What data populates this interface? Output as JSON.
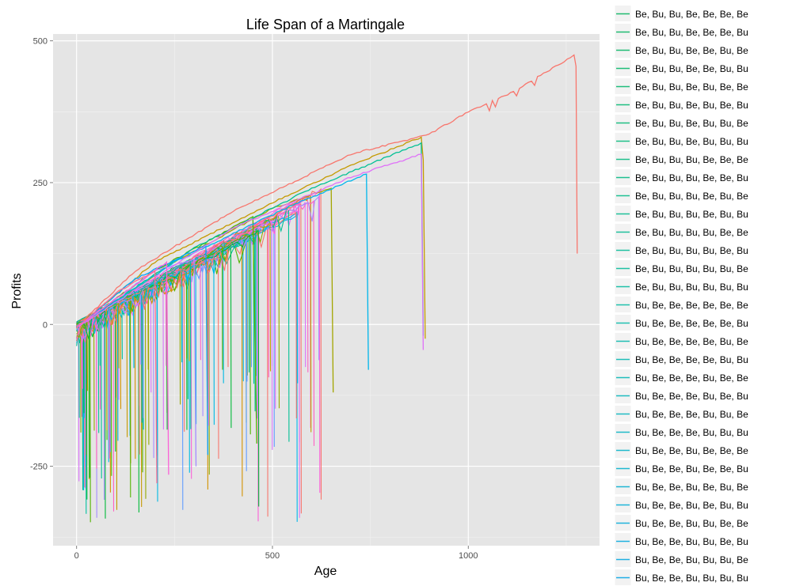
{
  "chart_data": {
    "type": "line",
    "title": "Life Span of a Martingale",
    "xlabel": "Age",
    "ylabel": "Profits",
    "xlim": [
      -60,
      1335
    ],
    "ylim": [
      -390,
      512
    ],
    "x_ticks": [
      0,
      500,
      1000
    ],
    "y_ticks": [
      500,
      250,
      0,
      -250
    ],
    "x_tick_labels": [
      "0",
      "500",
      "1000"
    ],
    "y_tick_labels": [
      "500",
      "250",
      "0",
      "-250"
    ],
    "grid": true,
    "panel_background": "#e5e5e5",
    "legend_position": "right",
    "legend_entries": [
      {
        "name": "Be, Bu, Bu, Be, Be, Be, Be",
        "color": "#1fbb6f"
      },
      {
        "name": "Be, Bu, Bu, Be, Be, Be, Bu",
        "color": "#1fbb70"
      },
      {
        "name": "Be, Bu, Bu, Be, Be, Bu, Be",
        "color": "#1fbc74"
      },
      {
        "name": "Be, Bu, Bu, Be, Be, Bu, Bu",
        "color": "#1fbd78"
      },
      {
        "name": "Be, Bu, Bu, Be, Bu, Be, Be",
        "color": "#1fbd7c"
      },
      {
        "name": "Be, Bu, Bu, Be, Bu, Be, Bu",
        "color": "#1fbe80"
      },
      {
        "name": "Be, Bu, Bu, Be, Bu, Bu, Be",
        "color": "#1fbe84"
      },
      {
        "name": "Be, Bu, Bu, Be, Bu, Bu, Bu",
        "color": "#1fbf88"
      },
      {
        "name": "Be, Bu, Bu, Bu, Be, Be, Be",
        "color": "#1fbf8c"
      },
      {
        "name": "Be, Bu, Bu, Bu, Be, Be, Bu",
        "color": "#1fbf90"
      },
      {
        "name": "Be, Bu, Bu, Bu, Be, Bu, Be",
        "color": "#1fc094"
      },
      {
        "name": "Be, Bu, Bu, Bu, Be, Bu, Bu",
        "color": "#1fc098"
      },
      {
        "name": "Be, Bu, Bu, Bu, Bu, Be, Be",
        "color": "#1fc09c"
      },
      {
        "name": "Be, Bu, Bu, Bu, Bu, Be, Bu",
        "color": "#1fc0a0"
      },
      {
        "name": "Be, Bu, Bu, Bu, Bu, Bu, Be",
        "color": "#1fc0a4"
      },
      {
        "name": "Be, Bu, Bu, Bu, Bu, Bu, Bu",
        "color": "#1fc0a8"
      },
      {
        "name": "Bu, Be, Be, Be, Be, Be, Be",
        "color": "#1fbfac"
      },
      {
        "name": "Bu, Be, Be, Be, Be, Be, Bu",
        "color": "#1fbfb0"
      },
      {
        "name": "Bu, Be, Be, Be, Be, Bu, Be",
        "color": "#1fbeb4"
      },
      {
        "name": "Bu, Be, Be, Be, Be, Bu, Bu",
        "color": "#1fbeb8"
      },
      {
        "name": "Bu, Be, Be, Be, Bu, Be, Be",
        "color": "#1fbdbc"
      },
      {
        "name": "Bu, Be, Be, Be, Bu, Be, Bu",
        "color": "#1fbcc0"
      },
      {
        "name": "Bu, Be, Be, Be, Bu, Bu, Be",
        "color": "#1fbbc4"
      },
      {
        "name": "Bu, Be, Be, Be, Bu, Bu, Bu",
        "color": "#1fbac8"
      },
      {
        "name": "Bu, Be, Be, Bu, Be, Be, Be",
        "color": "#1fb9cc"
      },
      {
        "name": "Bu, Be, Be, Bu, Be, Be, Bu",
        "color": "#1fb8d0"
      },
      {
        "name": "Bu, Be, Be, Bu, Be, Bu, Be",
        "color": "#1fb6d4"
      },
      {
        "name": "Bu, Be, Be, Bu, Be, Bu, Bu",
        "color": "#1fb5d8"
      },
      {
        "name": "Bu, Be, Be, Bu, Bu, Be, Be",
        "color": "#1fb3dc"
      },
      {
        "name": "Bu, Be, Be, Bu, Bu, Be, Bu",
        "color": "#1fb1df"
      },
      {
        "name": "Bu, Be, Be, Bu, Bu, Bu, Be",
        "color": "#1fafe2"
      },
      {
        "name": "Bu, Be, Be, Bu, Bu, Bu, Bu",
        "color": "#1fade5"
      }
    ],
    "series": [
      {
        "color": "#f8766d",
        "values": [
          [
            0,
            -5
          ],
          [
            150,
            95
          ],
          [
            400,
            200
          ],
          [
            700,
            300
          ],
          [
            900,
            335
          ],
          [
            1000,
            375
          ],
          [
            1100,
            405
          ],
          [
            1200,
            445
          ],
          [
            1260,
            470
          ],
          [
            1270,
            475
          ],
          [
            1275,
            455
          ],
          [
            1278,
            125
          ]
        ]
      },
      {
        "color": "#c49a00",
        "values": [
          [
            0,
            -5
          ],
          [
            200,
            110
          ],
          [
            500,
            215
          ],
          [
            700,
            280
          ],
          [
            880,
            330
          ],
          [
            885,
            290
          ],
          [
            890,
            -25
          ]
        ]
      },
      {
        "color": "#a3a500",
        "values": [
          [
            0,
            -5
          ],
          [
            250,
            110
          ],
          [
            500,
            205
          ],
          [
            650,
            240
          ],
          [
            655,
            -120
          ]
        ]
      },
      {
        "color": "#53b400",
        "values": [
          [
            0,
            -5
          ],
          [
            200,
            95
          ],
          [
            450,
            190
          ],
          [
            460,
            -210
          ]
        ]
      },
      {
        "color": "#00c094",
        "values": [
          [
            0,
            -5
          ],
          [
            300,
            135
          ],
          [
            600,
            240
          ],
          [
            880,
            320
          ],
          [
            885,
            -20
          ]
        ]
      },
      {
        "color": "#00b6eb",
        "values": [
          [
            0,
            -5
          ],
          [
            250,
            110
          ],
          [
            550,
            210
          ],
          [
            740,
            265
          ],
          [
            745,
            -80
          ]
        ]
      },
      {
        "color": "#06a4ff",
        "values": [
          [
            0,
            -5
          ],
          [
            150,
            80
          ],
          [
            330,
            140
          ],
          [
            335,
            -230
          ]
        ]
      },
      {
        "color": "#a58aff",
        "values": [
          [
            0,
            -5
          ],
          [
            200,
            95
          ],
          [
            300,
            115
          ],
          [
            305,
            -250
          ]
        ]
      },
      {
        "color": "#df70f8",
        "values": [
          [
            0,
            -5
          ],
          [
            400,
            170
          ],
          [
            700,
            260
          ],
          [
            880,
            300
          ],
          [
            885,
            -45
          ]
        ]
      },
      {
        "color": "#fb61d7",
        "values": [
          [
            0,
            -5
          ],
          [
            230,
            110
          ],
          [
            235,
            -265
          ]
        ]
      },
      {
        "color": "#ff6c91",
        "values": [
          [
            0,
            -5
          ],
          [
            100,
            55
          ],
          [
            200,
            95
          ],
          [
            205,
            -280
          ]
        ]
      }
    ],
    "dense_series_colors": [
      "#f8766d",
      "#d39200",
      "#93aa00",
      "#00ba38",
      "#00c19f",
      "#00b9e3",
      "#619cff",
      "#db72fb",
      "#ff61c3",
      "#c49a00",
      "#53b400",
      "#00c094",
      "#00b6eb",
      "#a58aff",
      "#fb61d7"
    ]
  }
}
